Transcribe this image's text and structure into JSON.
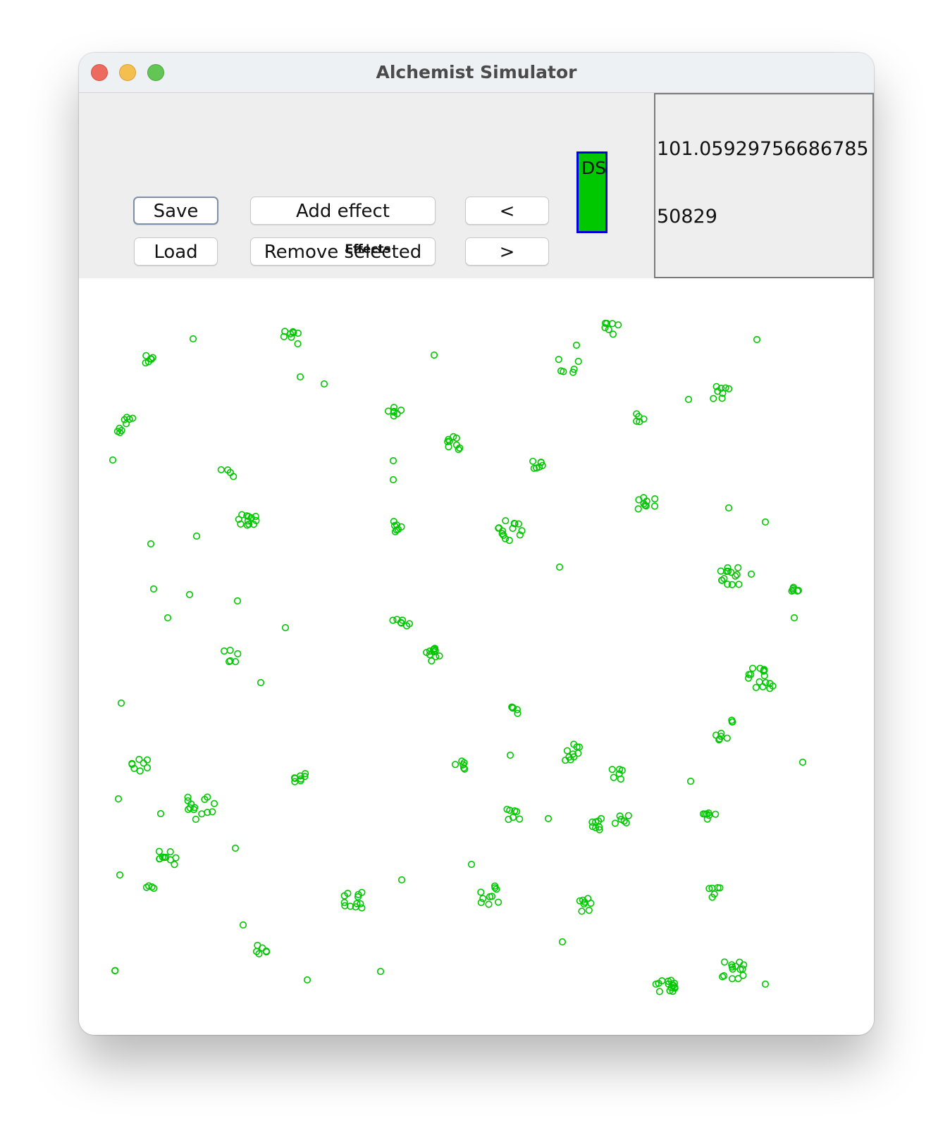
{
  "window": {
    "title": "Alchemist Simulator"
  },
  "toolbar": {
    "save_label": "Save",
    "load_label": "Load",
    "add_effect_label": "Add effect",
    "remove_selected_label": "Remove selected",
    "prev_label": "<",
    "next_label": ">",
    "effects_label": "Effects",
    "ds_label": "DS"
  },
  "info": {
    "time_value": "101.05929756686785",
    "step_value": "50829"
  },
  "colors": {
    "node_stroke": "#00c800",
    "ds_fill": "#00c800",
    "ds_border": "#0000d8"
  }
}
